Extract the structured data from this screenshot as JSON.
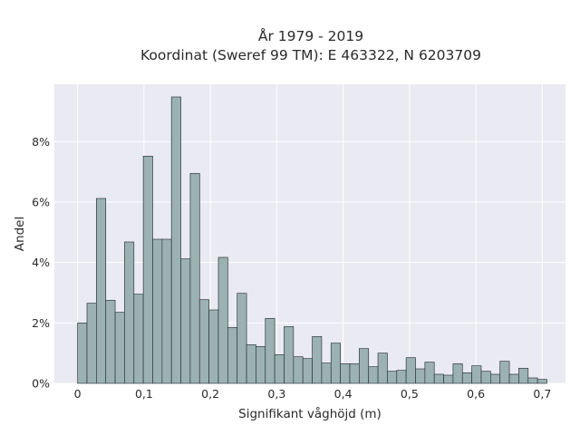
{
  "chart_data": {
    "type": "bar",
    "title": "År 1979 - 2019",
    "subtitle": "Koordinat (Sweref 99 TM): E 463322, N 6203709",
    "xlabel": "Signifikant våghöjd (m)",
    "ylabel": "Andel",
    "xlim": [
      -0.035,
      0.735
    ],
    "ylim": [
      0,
      9.9
    ],
    "xticks": [
      0,
      0.1,
      0.2,
      0.3,
      0.4,
      0.5,
      0.6,
      0.7
    ],
    "xtick_labels": [
      "0",
      "0,1",
      "0,2",
      "0,3",
      "0,4",
      "0,5",
      "0,6",
      "0,7"
    ],
    "yticks": [
      0,
      2,
      4,
      6,
      8
    ],
    "ytick_labels": [
      "0%",
      "2%",
      "4%",
      "6%",
      "8%"
    ],
    "bin_width": 0.01414,
    "bin_start": 0,
    "values": [
      2.0,
      2.65,
      6.12,
      2.75,
      2.35,
      4.68,
      2.95,
      7.52,
      4.77,
      4.77,
      9.48,
      4.12,
      6.95,
      2.77,
      2.43,
      4.17,
      1.85,
      2.98,
      1.28,
      1.22,
      2.15,
      0.95,
      1.88,
      0.88,
      0.82,
      1.55,
      0.67,
      1.33,
      0.65,
      0.65,
      1.15,
      0.55,
      1.0,
      0.4,
      0.43,
      0.85,
      0.48,
      0.7,
      0.3,
      0.27,
      0.65,
      0.35,
      0.58,
      0.4,
      0.3,
      0.73,
      0.3,
      0.5,
      0.18,
      0.13
    ],
    "unit": "%",
    "grid": true,
    "bar_color": "#9cb2b2",
    "edge_color": "#2f3a3a",
    "background_color": "#eaeaf2"
  }
}
